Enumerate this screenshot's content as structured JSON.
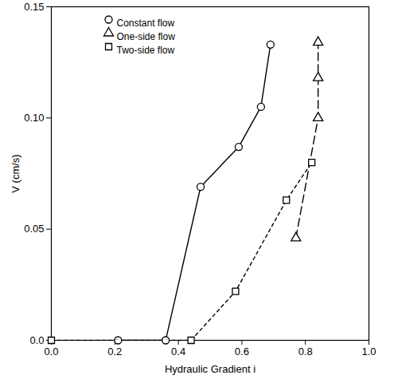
{
  "chart_data": {
    "type": "line",
    "x_label": "Hydraulic Gradient i",
    "y_label": "V (cm/s)",
    "xlim": [
      0.0,
      1.0
    ],
    "xticks": [
      {
        "value": 0.0,
        "label": "0.0"
      },
      {
        "value": 0.2,
        "label": "0.2"
      },
      {
        "value": 0.4,
        "label": "0.4"
      },
      {
        "value": 0.6,
        "label": "0.6"
      },
      {
        "value": 0.8,
        "label": "0.8"
      },
      {
        "value": 1.0,
        "label": "1.0"
      }
    ],
    "ylim": [
      0.0,
      0.15
    ],
    "yticks": [
      {
        "value": 0.0,
        "label": "0.0"
      },
      0.05,
      {
        "value": 0.1,
        "label": "0.10"
      },
      0.15
    ],
    "legend": "top-left",
    "grid": false,
    "series": [
      {
        "name": "Constant flow",
        "color": "#000000",
        "marker": "circle",
        "line_style": "solid",
        "x": [
          0.21,
          0.36,
          0.47,
          0.59,
          0.66,
          0.69
        ],
        "values": [
          0.0,
          0.0,
          0.069,
          0.087,
          0.105,
          0.133
        ]
      },
      {
        "name": "One-side flow",
        "color": "#000000",
        "marker": "triangle",
        "line_style": "long-dash",
        "x": [
          0.77,
          0.84,
          0.84,
          0.84
        ],
        "values": [
          0.046,
          0.1,
          0.118,
          0.134
        ]
      },
      {
        "name": "Two-side flow",
        "color": "#000000",
        "marker": "square",
        "line_style": "short-dash",
        "x": [
          0.0,
          0.44,
          0.58,
          0.74,
          0.82
        ],
        "values": [
          0.0,
          0.0,
          0.022,
          0.063,
          0.08
        ]
      }
    ]
  }
}
